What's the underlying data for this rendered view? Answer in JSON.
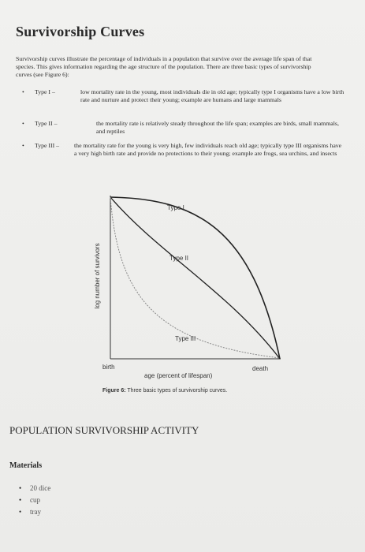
{
  "header": {
    "title": "Survivorship Curves"
  },
  "intro": "Survivorship curves illustrate the percentage of individuals in a population that survive over the average life span of that species. This gives information regarding the age structure of the population. There are three basic types of survivorship curves (see Figure 6):",
  "bullets": [
    {
      "label": "Type I –",
      "text": "low mortality rate in the young, most individuals die in old age; typically type I organisms have a low birth rate and nurture and protect their young; example are humans and large mammals"
    },
    {
      "label": "Type II –",
      "text": "the mortality rate is relatively steady throughout the life span; examples are birds, small mammals, and reptiles"
    },
    {
      "label": "Type III –",
      "text": "the mortality rate for the young is very high, few individuals reach old age; typically type III organisms have a very high birth rate and provide no protections to their young; example are frogs, sea urchins, and insects"
    }
  ],
  "figure": {
    "y_label": "log number of survivors",
    "curve_labels": [
      "Type I",
      "Type II",
      "Type III"
    ],
    "x_start": "birth",
    "x_end": "death",
    "x_label": "age (percent of lifespan)",
    "caption_label": "Figure 6:",
    "caption_text": "Three basic types of survivorship curves."
  },
  "section": {
    "title": "POPULATION SURVIVORSHIP ACTIVITY"
  },
  "materials": {
    "title": "Materials",
    "items": [
      "20 dice",
      "cup",
      "tray"
    ]
  }
}
